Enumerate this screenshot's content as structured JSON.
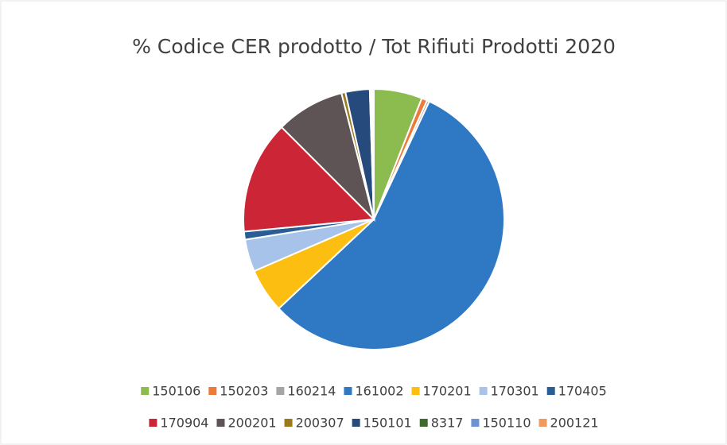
{
  "chart_data": {
    "type": "pie",
    "title": "% Codice CER prodotto / Tot Rifiuti Prodotti 2020",
    "categories": [
      "150106",
      "150203",
      "160214",
      "161002",
      "170201",
      "170301",
      "170405",
      "170904",
      "200201",
      "200307",
      "150101",
      "8317",
      "150110",
      "200121"
    ],
    "values": [
      6,
      0.7,
      0.3,
      56,
      5.5,
      4,
      1,
      14,
      8.5,
      0.5,
      3,
      0.1,
      0.2,
      0.2
    ],
    "colors": [
      "#8cbb4f",
      "#ec7a3a",
      "#a5a5a5",
      "#2f78c4",
      "#fdbe12",
      "#a8c3ea",
      "#285e95",
      "#cc2636",
      "#5e5456",
      "#9a7a1a",
      "#264a7c",
      "#3f6a2d",
      "#6d93d2",
      "#f09a60"
    ],
    "legend": "bottom"
  }
}
